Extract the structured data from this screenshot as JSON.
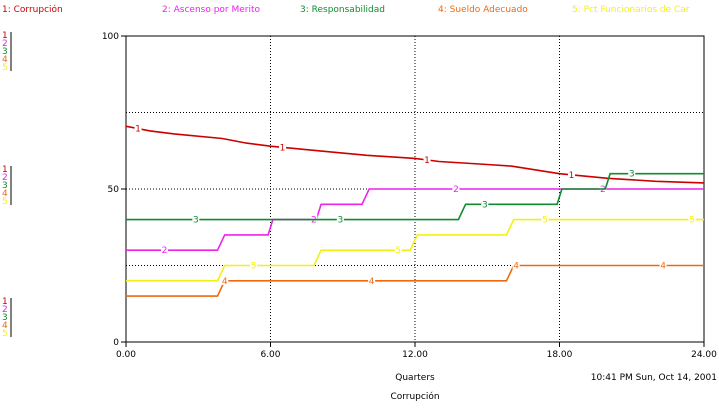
{
  "chart_data": {
    "type": "line",
    "title": "Corrupción",
    "xlabel": "Quarters",
    "timestamp": "10:41 PM  Sun, Oct 14, 2001",
    "xlim": [
      0,
      24
    ],
    "ylim": [
      0,
      100
    ],
    "x_ticks": [
      "0.00",
      "6.00",
      "12.00",
      "18.00",
      "24.00"
    ],
    "y_ticks": [
      "0",
      "50",
      "100"
    ],
    "grid": true,
    "series": [
      {
        "id": "1",
        "name": "Corrupción",
        "legend_label": "1: Corrupción",
        "color": "#cc0000",
        "points": [
          [
            0,
            70.5
          ],
          [
            1,
            69
          ],
          [
            2,
            68
          ],
          [
            4,
            66.5
          ],
          [
            5,
            65
          ],
          [
            6,
            64
          ],
          [
            8,
            62.5
          ],
          [
            10,
            61
          ],
          [
            12,
            60
          ],
          [
            13,
            59
          ],
          [
            15,
            58
          ],
          [
            16,
            57.5
          ],
          [
            18,
            55
          ],
          [
            20,
            53.5
          ],
          [
            22,
            52.5
          ],
          [
            24,
            52
          ]
        ],
        "markers": [
          0.5,
          6.5,
          12.5,
          18.5
        ]
      },
      {
        "id": "2",
        "name": "Ascenso por Merito",
        "legend_label": "2: Ascenso por Merito",
        "color": "#ee22ee",
        "points": [
          [
            0,
            30
          ],
          [
            3.8,
            30
          ],
          [
            4.1,
            35
          ],
          [
            5.9,
            35
          ],
          [
            6.1,
            40
          ],
          [
            7.9,
            40
          ],
          [
            8.1,
            45
          ],
          [
            9.8,
            45
          ],
          [
            10.1,
            50
          ],
          [
            24,
            50
          ]
        ],
        "markers": [
          1.6,
          7.8,
          13.7,
          19.8
        ]
      },
      {
        "id": "3",
        "name": "Responsabilidad",
        "legend_label": "3: Responsabilidad",
        "color": "#108c30",
        "points": [
          [
            0,
            40
          ],
          [
            13.8,
            40
          ],
          [
            14.1,
            45
          ],
          [
            17.9,
            45
          ],
          [
            18.1,
            50
          ],
          [
            19.9,
            50
          ],
          [
            20.1,
            55
          ],
          [
            24,
            55
          ]
        ],
        "markers": [
          2.9,
          8.9,
          14.9,
          21.0
        ]
      },
      {
        "id": "4",
        "name": "Sueldo Adecuado",
        "legend_label": "4: Sueldo Adecuado",
        "color": "#ee6a10",
        "points": [
          [
            0,
            15
          ],
          [
            3.8,
            15
          ],
          [
            4.1,
            20
          ],
          [
            15.8,
            20
          ],
          [
            16.1,
            25
          ],
          [
            24,
            25
          ]
        ],
        "markers": [
          4.1,
          10.2,
          16.2,
          22.3
        ]
      },
      {
        "id": "5",
        "name": "Pct Funcionarios de Car",
        "legend_label": "5: Pct Funcionarios de Car",
        "color": "#f5f014",
        "points": [
          [
            0,
            20
          ],
          [
            3.8,
            20
          ],
          [
            4.1,
            25
          ],
          [
            7.8,
            25
          ],
          [
            8.1,
            30
          ],
          [
            11.8,
            30
          ],
          [
            12.1,
            35
          ],
          [
            15.8,
            35
          ],
          [
            16.1,
            40
          ],
          [
            24,
            40
          ]
        ],
        "markers": [
          5.3,
          11.3,
          17.4,
          23.5
        ]
      }
    ]
  },
  "side_key": {
    "numbers": [
      "1",
      "2",
      "3",
      "4",
      "5"
    ]
  }
}
